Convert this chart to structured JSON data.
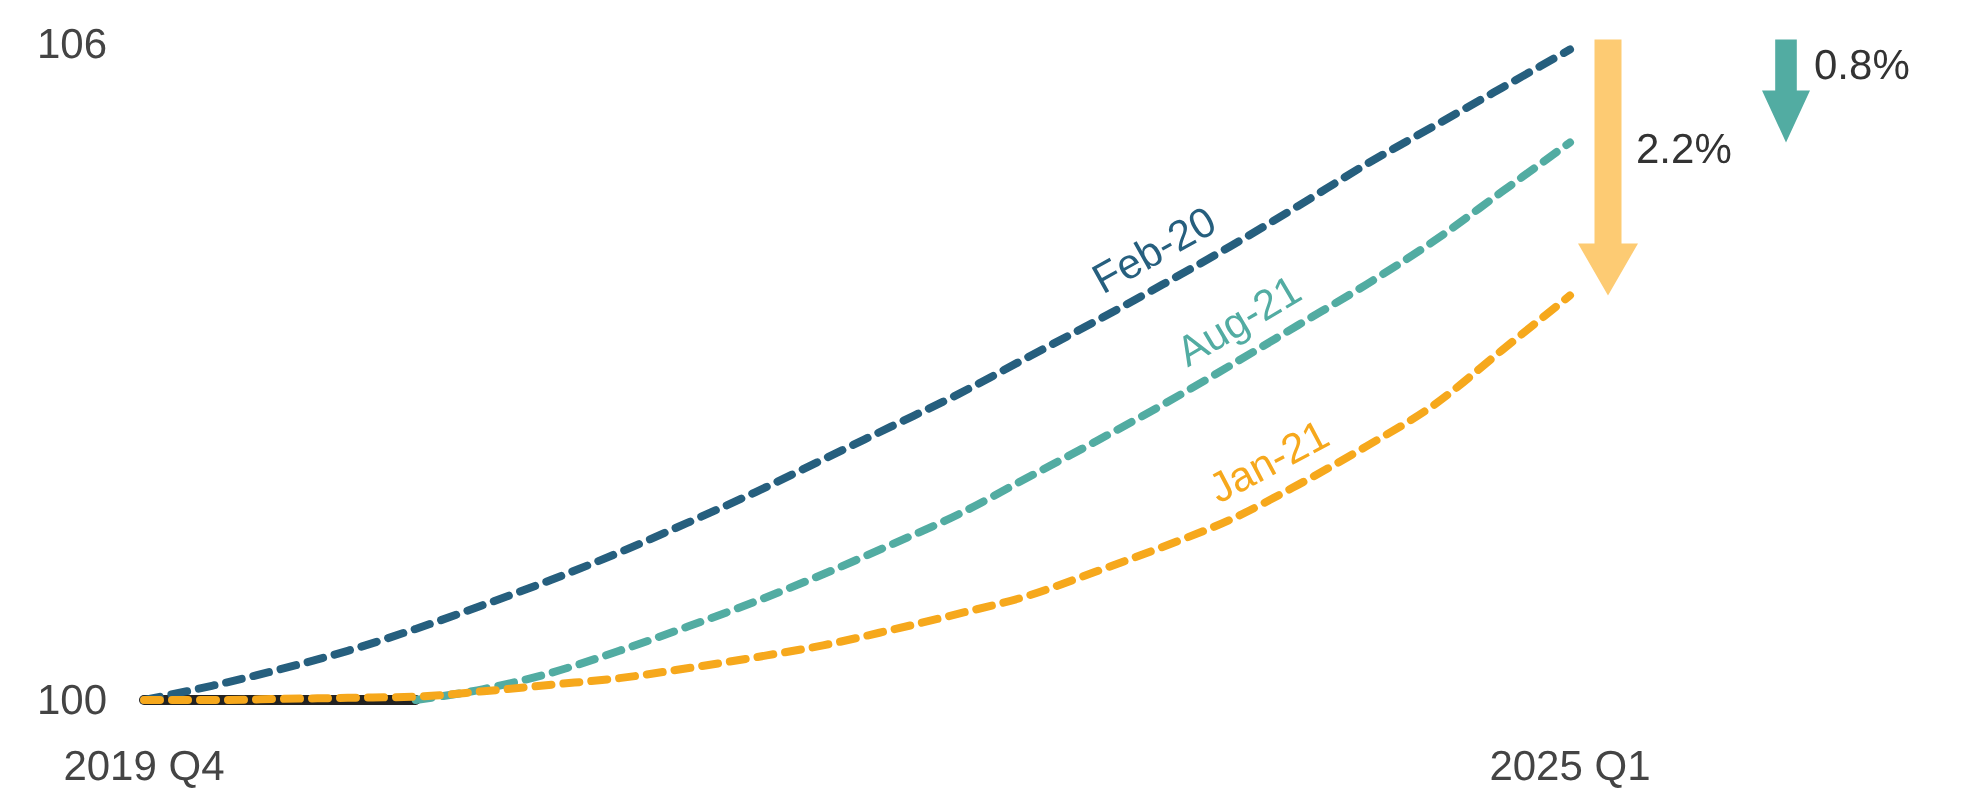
{
  "chart_data": {
    "type": "line",
    "categories": [
      "2019 Q4",
      null,
      null,
      null,
      null,
      null,
      null,
      null,
      null,
      null,
      null,
      null,
      null,
      null,
      null,
      null,
      null,
      null,
      null,
      null,
      null,
      "2025 Q1"
    ],
    "ylim": [
      100,
      106
    ],
    "yticks": [
      100,
      106
    ],
    "grid": false,
    "legend": false,
    "marker": "none",
    "series": [
      {
        "color": "#222222",
        "line_style": "solid",
        "values": [
          100,
          100,
          100,
          100,
          100,
          null,
          null,
          null,
          null,
          null,
          null,
          null,
          null,
          null,
          null,
          null,
          null,
          null,
          null,
          null,
          null,
          null
        ]
      },
      {
        "name": "Feb-20",
        "color": "#265f7e",
        "line_style": "dashed",
        "values": [
          100,
          100.13,
          100.28,
          100.45,
          100.65,
          100.87,
          101.1,
          101.35,
          101.62,
          101.9,
          102.2,
          102.5,
          102.8,
          103.13,
          103.46,
          103.8,
          104.15,
          104.52,
          104.9,
          105.25,
          105.6,
          105.95
        ]
      },
      {
        "name": "Aug-21",
        "color": "#52aca2",
        "line_style": "dashed",
        "values": [
          null,
          null,
          null,
          null,
          100,
          100.1,
          100.25,
          100.45,
          100.67,
          100.9,
          101.15,
          101.42,
          101.7,
          102.03,
          102.36,
          102.7,
          103.06,
          103.43,
          103.8,
          104.2,
          104.65,
          105.1
        ]
      },
      {
        "name": "Jan-21",
        "color": "#f6a81c",
        "line_style": "dashed",
        "values": [
          100,
          100,
          100.01,
          100.02,
          100.03,
          100.08,
          100.14,
          100.2,
          100.29,
          100.39,
          100.5,
          100.64,
          100.79,
          100.95,
          101.17,
          101.4,
          101.65,
          101.97,
          102.32,
          102.7,
          103.2,
          103.7
        ]
      }
    ],
    "annotations": [
      "2.2%",
      "0.8%"
    ]
  }
}
